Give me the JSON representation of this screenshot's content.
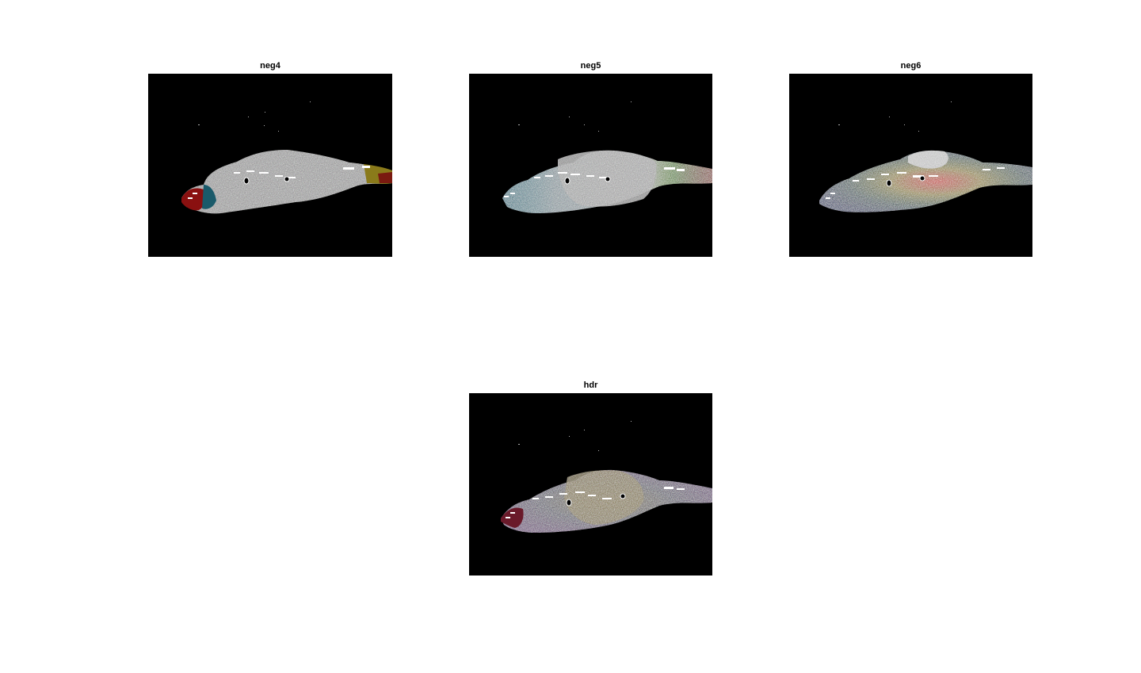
{
  "figure": {
    "panels": [
      {
        "title": "neg4"
      },
      {
        "title": "neg5"
      },
      {
        "title": "neg6"
      },
      {
        "title": "hdr"
      }
    ]
  }
}
